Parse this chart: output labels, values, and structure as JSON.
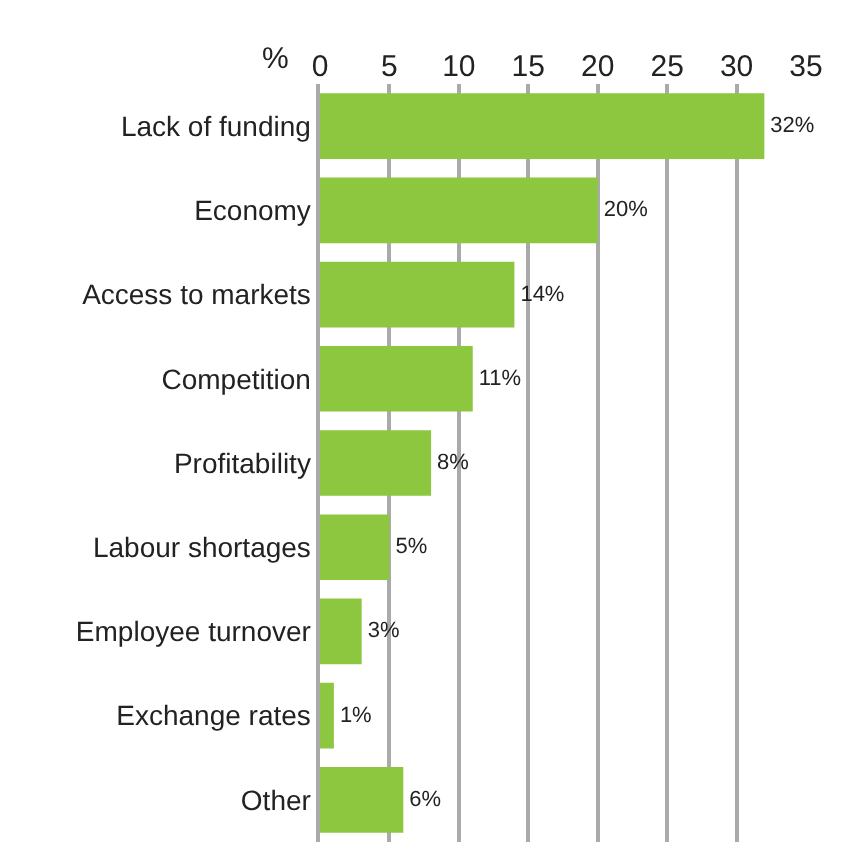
{
  "chart_data": {
    "type": "bar",
    "orientation": "horizontal",
    "xlabel": "%",
    "categories": [
      "Lack of funding",
      "Economy",
      "Access to markets",
      "Competition",
      "Profitability",
      "Labour shortages",
      "Employee turnover",
      "Exchange rates",
      "Other"
    ],
    "values": [
      32,
      20,
      14,
      11,
      8,
      5,
      3,
      1,
      6
    ],
    "value_labels": [
      "32%",
      "20%",
      "14%",
      "11%",
      "8%",
      "5%",
      "3%",
      "1%",
      "6%"
    ],
    "color": "#8dc63f",
    "xlim": [
      0,
      35
    ],
    "xticks": [
      0,
      5,
      10,
      15,
      20,
      25,
      30,
      35
    ],
    "grid": "x",
    "legend": false
  }
}
